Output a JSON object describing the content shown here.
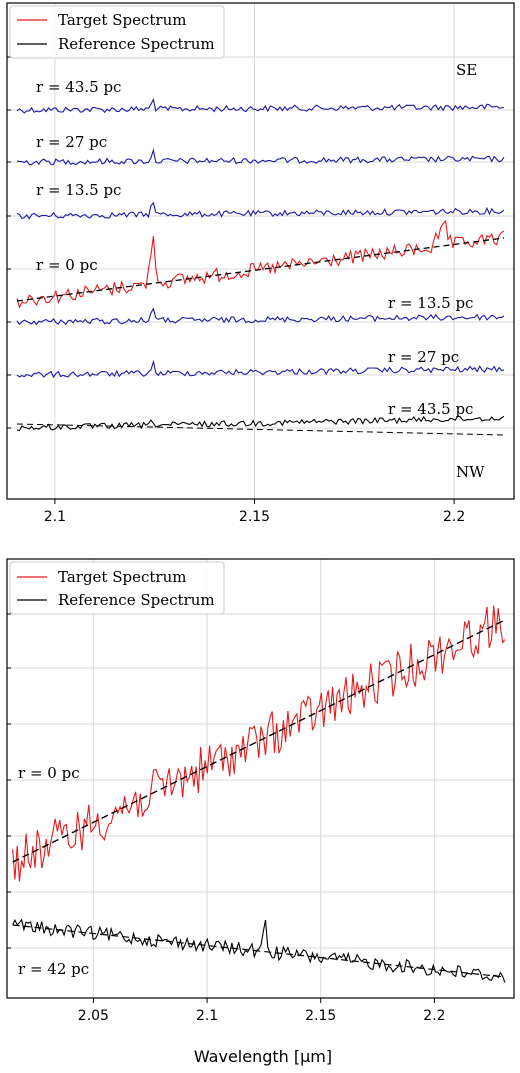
{
  "xlabel": "Wavelength [μm]",
  "colors": {
    "target": "#e41a1c",
    "reference": "#000000",
    "annular": "#1a1aa6",
    "grid": "#d9d9d9"
  },
  "chart_data": [
    {
      "type": "line",
      "panel": "top",
      "xlim": [
        2.088,
        2.215
      ],
      "xticks": [
        2.1,
        2.15,
        2.2
      ],
      "xtick_labels": [
        "2.1",
        "2.15",
        "2.2"
      ],
      "grid": true,
      "legend": {
        "position": "top-left",
        "entries": [
          {
            "label": "Target Spectrum",
            "color": "#e41a1c"
          },
          {
            "label": "Reference Spectrum",
            "color": "#000000"
          }
        ]
      },
      "annotations": [
        {
          "text": "SE",
          "anchor": "top-right"
        },
        {
          "text": "NW",
          "anchor": "bottom-right"
        }
      ],
      "series": [
        {
          "name": "r = 43.5 pc",
          "side": "SE",
          "color": "#1a1aa6",
          "trace": 6,
          "start": 0,
          "end": -0.3,
          "line_peak": 10
        },
        {
          "name": "r = 27 pc",
          "side": "SE",
          "color": "#1a1aa6",
          "trace": 5,
          "start": 0,
          "end": -0.3,
          "line_peak": 10
        },
        {
          "name": "r = 13.5 pc",
          "side": "SE",
          "color": "#1a1aa6",
          "trace": 4,
          "start": 0,
          "end": -0.5,
          "line_peak": 16
        },
        {
          "name": "r = 0 pc",
          "side": "center",
          "color": "#e41a1c",
          "trace": 3,
          "start": -3,
          "end": 5,
          "line_peak": 24
        },
        {
          "name": "r = 13.5 pc",
          "side": "NW",
          "color": "#1a1aa6",
          "trace": 2,
          "start": 0,
          "end": -0.5,
          "line_peak": 16
        },
        {
          "name": "r = 27 pc",
          "side": "NW",
          "color": "#1a1aa6",
          "trace": 1,
          "start": 0,
          "end": -0.6,
          "line_peak": 10
        },
        {
          "name": "r = 43.5 pc",
          "side": "NW",
          "color": "#000000",
          "trace": 0,
          "start": 0,
          "end": -1,
          "line_peak": 5
        }
      ]
    },
    {
      "type": "line",
      "panel": "bottom",
      "xlim": [
        2.012,
        2.235
      ],
      "xticks": [
        2.05,
        2.1,
        2.15,
        2.2
      ],
      "xtick_labels": [
        "2.05",
        "2.1",
        "2.15",
        "2.2"
      ],
      "xlabel": "Wavelength [μm]",
      "grid": true,
      "legend": {
        "position": "top-left",
        "entries": [
          {
            "label": "Target Spectrum",
            "color": "#e41a1c"
          },
          {
            "label": "Reference Spectrum",
            "color": "#000000"
          }
        ]
      },
      "series": [
        {
          "name": "r = 0 pc",
          "color": "#e41a1c",
          "start": 100,
          "end": 330,
          "line_peak": 0
        },
        {
          "name": "r = 42 pc",
          "color": "#000000",
          "start": 40,
          "end": -10,
          "line_peak": 40
        }
      ]
    }
  ]
}
